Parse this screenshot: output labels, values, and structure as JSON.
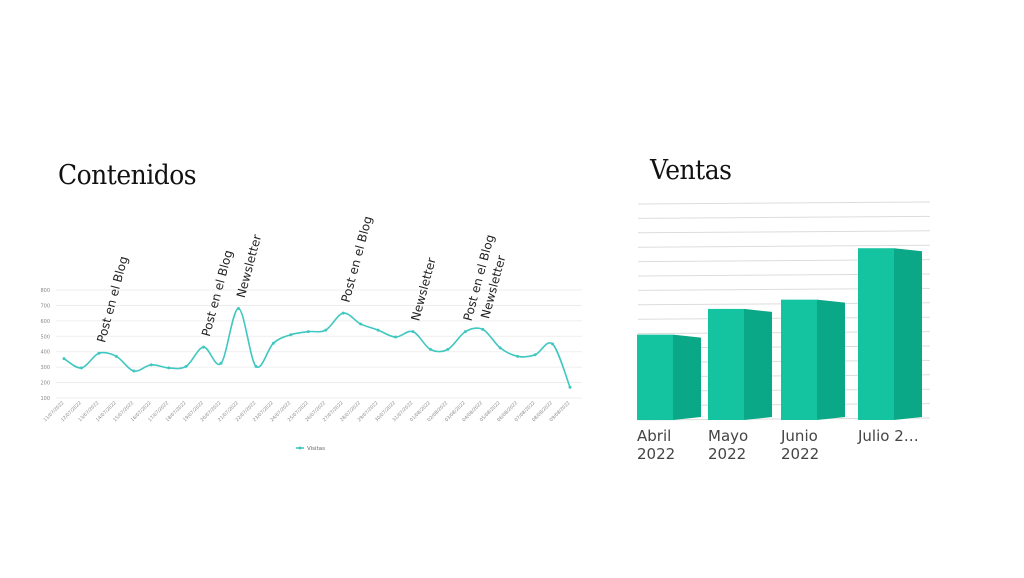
{
  "chart_data": [
    {
      "type": "line",
      "title": "Contenidos",
      "x": [
        "11/07/2022",
        "12/07/2022",
        "13/07/2022",
        "14/07/2022",
        "15/07/2022",
        "16/07/2022",
        "17/07/2022",
        "18/07/2022",
        "19/07/2022",
        "20/07/2022",
        "21/07/2022",
        "22/07/2022",
        "23/07/2022",
        "24/07/2022",
        "25/07/2022",
        "26/07/2022",
        "27/07/2022",
        "28/07/2022",
        "29/07/2022",
        "30/07/2022",
        "31/07/2022",
        "01/08/2022",
        "02/08/2022",
        "03/08/2022",
        "04/08/2022",
        "05/08/2022",
        "06/08/2022",
        "07/08/2022",
        "08/08/2022",
        "09/08/2022"
      ],
      "series": [
        {
          "name": "Visitas",
          "color": "#3fc7c0",
          "values": [
            355,
            295,
            390,
            370,
            275,
            315,
            295,
            305,
            430,
            325,
            680,
            305,
            455,
            510,
            530,
            540,
            650,
            580,
            540,
            495,
            530,
            415,
            415,
            530,
            545,
            425,
            370,
            380,
            450,
            170
          ]
        }
      ],
      "ylim": [
        100,
        800
      ],
      "yticks": [
        100,
        200,
        300,
        400,
        500,
        600,
        700,
        800
      ],
      "grid": true,
      "legend": "bottom",
      "annotations": [
        {
          "index": 2,
          "text": "Post en el Blog"
        },
        {
          "index": 8,
          "text": "Post en el Blog"
        },
        {
          "index": 10,
          "text": "Newsletter"
        },
        {
          "index": 16,
          "text": "Post en el Blog"
        },
        {
          "index": 20,
          "text": "Newsletter"
        },
        {
          "index": 23,
          "text": "Post en el Blog"
        },
        {
          "index": 24,
          "text": "Newsletter"
        }
      ]
    },
    {
      "type": "bar",
      "title": "Ventas",
      "categories": [
        "Abril\n2022",
        "Mayo\n2022",
        "Junio\n2022",
        "Julio 2…"
      ],
      "values": [
        83,
        108,
        117,
        167
      ],
      "ylim": [
        0,
        210
      ],
      "grid": true,
      "color": "#14c39f"
    }
  ]
}
